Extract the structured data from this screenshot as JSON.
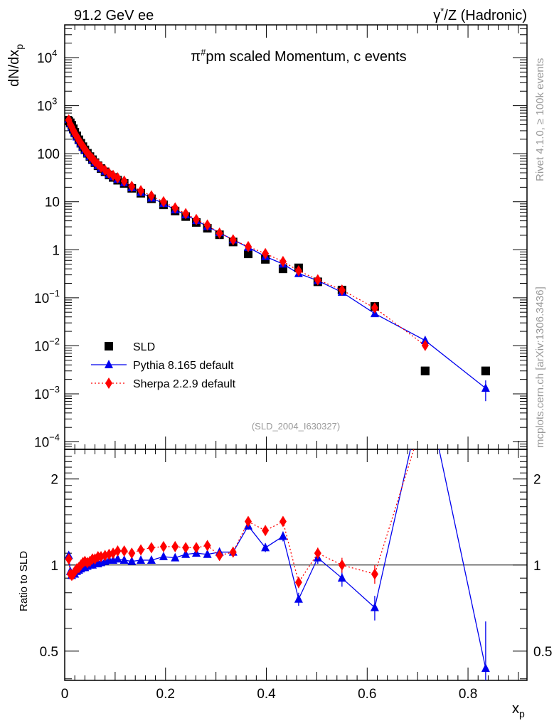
{
  "header": {
    "left": "91.2 GeV ee",
    "right_base": "γ",
    "right_sup": "*",
    "right_rest": "/Z (Hadronic)"
  },
  "side_text": {
    "rivet": "Rivet 4.1.0, ≥ 100k events",
    "mcplots": "mcplots.cern.ch [arXiv:1306.3436]"
  },
  "chart_data": [
    {
      "type": "scatter",
      "title_base": "π",
      "title_sup": "#",
      "title_rest": "pm scaled Momentum, c events",
      "ylabel_base": "dN/dx",
      "ylabel_sub": "p",
      "yscale": "log",
      "ylim": [
        7e-05,
        48000
      ],
      "xlim": [
        0,
        0.917
      ],
      "analysis_label": "(SLD_2004_I630327)",
      "legend_position": "bottom-left",
      "y_ticks": [
        {
          "v": 10000,
          "base": "10",
          "exp": "4"
        },
        {
          "v": 1000,
          "base": "10",
          "exp": "3"
        },
        {
          "v": 100,
          "base": "100",
          "exp": ""
        },
        {
          "v": 10,
          "base": "10",
          "exp": ""
        },
        {
          "v": 1,
          "base": "1",
          "exp": ""
        },
        {
          "v": 0.1,
          "base": "10",
          "exp": "−1"
        },
        {
          "v": 0.01,
          "base": "10",
          "exp": "−2"
        },
        {
          "v": 0.001,
          "base": "10",
          "exp": "−3"
        },
        {
          "v": 0.0001,
          "base": "10",
          "exp": "−4"
        }
      ],
      "x": [
        0.008,
        0.011,
        0.014,
        0.017,
        0.02,
        0.024,
        0.028,
        0.032,
        0.036,
        0.04,
        0.045,
        0.05,
        0.055,
        0.06,
        0.066,
        0.072,
        0.08,
        0.088,
        0.096,
        0.105,
        0.118,
        0.133,
        0.151,
        0.172,
        0.196,
        0.219,
        0.24,
        0.261,
        0.283,
        0.307,
        0.334,
        0.364,
        0.398,
        0.433,
        0.464,
        0.502,
        0.55,
        0.615,
        0.715,
        0.835
      ],
      "series": [
        {
          "name": "SLD",
          "color": "#000000",
          "marker": "square",
          "values": [
            480,
            440,
            390,
            330,
            280,
            235,
            195,
            165,
            140,
            120,
            102,
            87,
            75,
            65,
            56,
            49,
            42,
            36,
            32,
            28,
            24,
            19,
            15,
            11.5,
            8.6,
            6.4,
            4.9,
            3.7,
            2.8,
            2.05,
            1.45,
            0.82,
            0.63,
            0.4,
            0.42,
            0.215,
            0.145,
            0.066,
            0.003,
            0.003
          ]
        },
        {
          "name": "Pythia 8.165 default",
          "color": "#0000ee",
          "marker": "triangle",
          "line": "solid",
          "ratio": [
            1.08,
            0.95,
            0.92,
            0.94,
            0.93,
            0.95,
            0.96,
            0.97,
            0.98,
            0.98,
            0.99,
            1.0,
            1.0,
            1.01,
            1.01,
            1.02,
            1.03,
            1.04,
            1.04,
            1.05,
            1.04,
            1.03,
            1.04,
            1.04,
            1.07,
            1.06,
            1.09,
            1.1,
            1.09,
            1.11,
            1.11,
            1.37,
            1.15,
            1.26,
            0.76,
            1.06,
            0.9,
            0.71,
            4.3,
            0.435
          ],
          "ratio_err": [
            0.02,
            0.01,
            0.01,
            0.01,
            0.01,
            0.01,
            0.01,
            0.01,
            0.01,
            0.01,
            0.01,
            0.01,
            0.01,
            0.01,
            0.01,
            0.01,
            0.01,
            0.01,
            0.01,
            0.01,
            0.01,
            0.01,
            0.01,
            0.01,
            0.01,
            0.01,
            0.015,
            0.015,
            0.02,
            0.02,
            0.025,
            0.04,
            0.04,
            0.05,
            0.04,
            0.05,
            0.06,
            0.07,
            0.5,
            0.2
          ]
        },
        {
          "name": "Sherpa 2.2.9 default",
          "color": "#ff0000",
          "marker": "diamond",
          "line": "dotted",
          "ratio": [
            1.05,
            0.93,
            0.92,
            0.93,
            0.95,
            0.97,
            0.98,
            1.0,
            1.02,
            1.03,
            1.02,
            1.03,
            1.05,
            1.05,
            1.07,
            1.07,
            1.08,
            1.09,
            1.1,
            1.12,
            1.12,
            1.1,
            1.13,
            1.15,
            1.16,
            1.16,
            1.15,
            1.15,
            1.17,
            1.08,
            1.11,
            1.42,
            1.32,
            1.42,
            0.87,
            1.1,
            1.0,
            0.93,
            3.4,
            null
          ],
          "ratio_err": [
            0.02,
            0.01,
            0.01,
            0.01,
            0.01,
            0.01,
            0.01,
            0.01,
            0.01,
            0.01,
            0.01,
            0.01,
            0.01,
            0.01,
            0.01,
            0.01,
            0.01,
            0.01,
            0.01,
            0.01,
            0.01,
            0.01,
            0.01,
            0.01,
            0.01,
            0.01,
            0.015,
            0.015,
            0.02,
            0.02,
            0.025,
            0.04,
            0.04,
            0.05,
            0.04,
            0.05,
            0.06,
            0.07,
            0.4,
            null
          ]
        }
      ]
    },
    {
      "type": "line",
      "ylabel": "Ratio to SLD",
      "xlabel_base": "x",
      "xlabel_sub": "p",
      "yscale": "log",
      "ylim": [
        0.395,
        2.54
      ],
      "reference_line": 1,
      "y_ticks": [
        {
          "v": 2,
          "label": "2"
        },
        {
          "v": 1,
          "label": "1"
        },
        {
          "v": 0.5,
          "label": "0.5"
        }
      ],
      "x_ticks": [
        {
          "v": 0,
          "label": "0"
        },
        {
          "v": 0.2,
          "label": "0.2"
        },
        {
          "v": 0.4,
          "label": "0.4"
        },
        {
          "v": 0.6,
          "label": "0.6"
        },
        {
          "v": 0.8,
          "label": "0.8"
        }
      ]
    }
  ]
}
